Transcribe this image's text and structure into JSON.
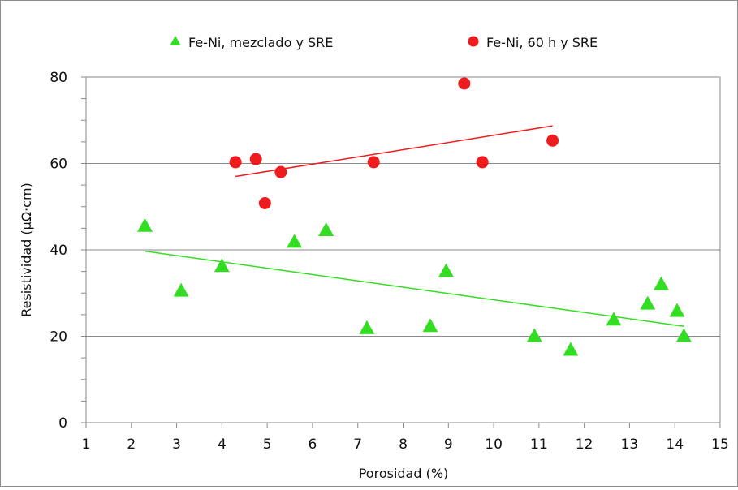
{
  "chart_data": {
    "type": "scatter",
    "title": "",
    "xlabel": "Porosidad (%)",
    "ylabel": "Resistividad (µΩ·cm)",
    "xlim": [
      1,
      15
    ],
    "ylim": [
      0,
      80
    ],
    "xticks": [
      1,
      2,
      3,
      4,
      5,
      6,
      7,
      8,
      9,
      10,
      11,
      12,
      13,
      14,
      15
    ],
    "yticks": [
      0,
      20,
      40,
      60,
      80
    ],
    "grid": "horizontal",
    "legend_position": "top",
    "series": [
      {
        "name": "Fe-Ni, mezclado y SRE",
        "marker": "triangle",
        "color": "#33dd22",
        "points": [
          [
            2.3,
            45.5
          ],
          [
            3.1,
            30.5
          ],
          [
            4.0,
            36.2
          ],
          [
            5.6,
            41.8
          ],
          [
            6.3,
            44.5
          ],
          [
            7.2,
            21.8
          ],
          [
            8.6,
            22.3
          ],
          [
            8.95,
            35.0
          ],
          [
            10.9,
            20.0
          ],
          [
            11.7,
            16.8
          ],
          [
            12.65,
            23.8
          ],
          [
            13.4,
            27.5
          ],
          [
            13.7,
            32.0
          ],
          [
            14.05,
            25.8
          ],
          [
            14.2,
            20.0
          ]
        ],
        "trendline": {
          "x": [
            2.3,
            14.2
          ],
          "y": [
            39.7,
            22.3
          ]
        }
      },
      {
        "name": "Fe-Ni, 60 h y SRE",
        "marker": "circle",
        "color": "#ee1c1c",
        "points": [
          [
            4.3,
            60.3
          ],
          [
            4.75,
            61.0
          ],
          [
            4.95,
            50.8
          ],
          [
            5.3,
            58.0
          ],
          [
            7.35,
            60.3
          ],
          [
            9.35,
            78.5
          ],
          [
            9.75,
            60.3
          ],
          [
            11.3,
            65.3
          ]
        ],
        "trendline": {
          "x": [
            4.3,
            11.3
          ],
          "y": [
            57.0,
            68.7
          ]
        }
      }
    ]
  }
}
